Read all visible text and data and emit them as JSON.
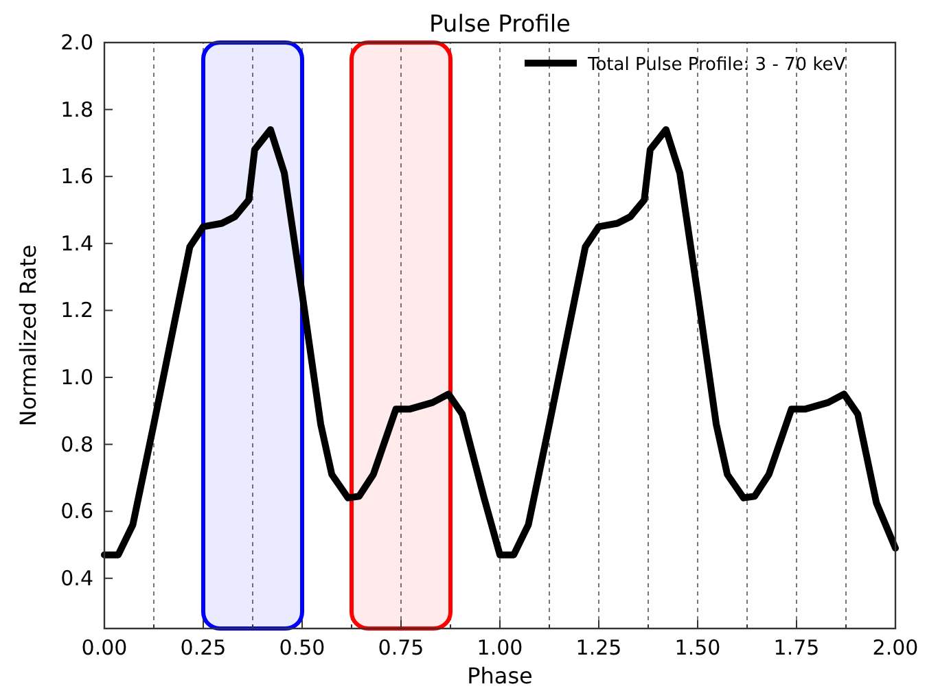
{
  "chart_data": {
    "type": "line",
    "title": "Pulse Profile",
    "xlabel": "Phase",
    "ylabel": "Normalized Rate",
    "xlim": [
      0,
      2
    ],
    "ylim": [
      0.25,
      2.0
    ],
    "xticks": [
      {
        "value": 0,
        "label": "0.00"
      },
      {
        "value": 0.125,
        "label": null
      },
      {
        "value": 0.25,
        "label": "0.25"
      },
      {
        "value": 0.375,
        "label": null
      },
      {
        "value": 0.5,
        "label": "0.50"
      },
      {
        "value": 0.625,
        "label": null
      },
      {
        "value": 0.75,
        "label": "0.75"
      },
      {
        "value": 0.875,
        "label": null
      },
      {
        "value": 1,
        "label": "1.00"
      },
      {
        "value": 1.125,
        "label": null
      },
      {
        "value": 1.25,
        "label": "1.25"
      },
      {
        "value": 1.375,
        "label": null
      },
      {
        "value": 1.5,
        "label": "1.50"
      },
      {
        "value": 1.625,
        "label": null
      },
      {
        "value": 1.75,
        "label": "1.75"
      },
      {
        "value": 1.875,
        "label": null
      },
      {
        "value": 2,
        "label": "2.00"
      }
    ],
    "yticks": [
      {
        "value": 0.4,
        "label": "0.4"
      },
      {
        "value": 0.6,
        "label": "0.6"
      },
      {
        "value": 0.8,
        "label": "0.8"
      },
      {
        "value": 1.0,
        "label": "1.0"
      },
      {
        "value": 1.2,
        "label": "1.2"
      },
      {
        "value": 1.4,
        "label": "1.4"
      },
      {
        "value": 1.6,
        "label": "1.6"
      },
      {
        "value": 1.8,
        "label": "1.8"
      },
      {
        "value": 2.0,
        "label": "2.0"
      }
    ],
    "grid": "x",
    "legend": "top right",
    "line_style": "solid",
    "marker": "none",
    "bands": [
      {
        "axis": "x",
        "from": 0.25,
        "to": 0.5,
        "color": "#0000ff"
      },
      {
        "axis": "x",
        "from": 0.625,
        "to": 0.875,
        "color": "#ff0000"
      }
    ],
    "x": [
      0,
      0.035,
      0.072,
      0.125,
      0.216,
      0.25,
      0.297,
      0.33,
      0.365,
      0.38,
      0.42,
      0.455,
      0.5,
      0.547,
      0.575,
      0.616,
      0.644,
      0.68,
      0.737,
      0.771,
      0.83,
      0.87,
      0.905,
      0.96,
      1.0,
      1.035,
      1.072,
      1.125,
      1.216,
      1.25,
      1.297,
      1.33,
      1.365,
      1.38,
      1.42,
      1.455,
      1.5,
      1.547,
      1.575,
      1.616,
      1.644,
      1.68,
      1.737,
      1.771,
      1.83,
      1.87,
      1.905,
      1.952,
      2.0
    ],
    "series": [
      {
        "name": "Total Pulse Profile: 3 - 70 keV",
        "color": "#000000",
        "values": [
          0.47,
          0.47,
          0.56,
          0.86,
          1.39,
          1.45,
          1.46,
          1.48,
          1.53,
          1.68,
          1.74,
          1.61,
          1.25,
          0.86,
          0.71,
          0.64,
          0.645,
          0.71,
          0.905,
          0.905,
          0.925,
          0.95,
          0.89,
          0.64,
          0.47,
          0.47,
          0.56,
          0.86,
          1.39,
          1.45,
          1.46,
          1.48,
          1.53,
          1.68,
          1.74,
          1.61,
          1.25,
          0.86,
          0.71,
          0.64,
          0.645,
          0.71,
          0.905,
          0.905,
          0.925,
          0.95,
          0.89,
          0.625,
          0.49
        ]
      }
    ]
  }
}
